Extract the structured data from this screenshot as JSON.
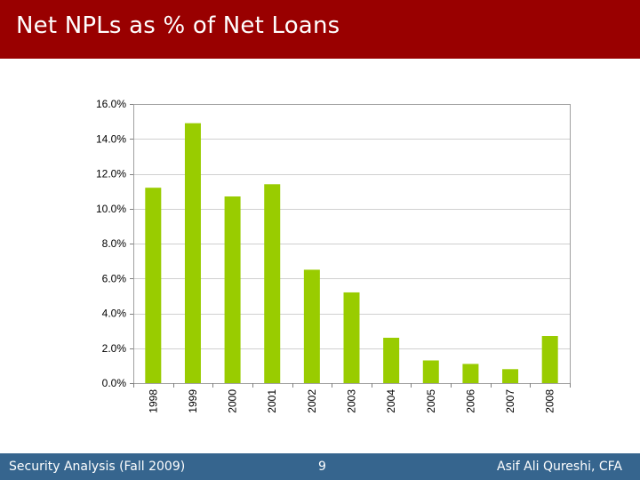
{
  "slide": {
    "title": "Net NPLs as % of Net Loans",
    "footer_left": "Security Analysis (Fall 2009)",
    "page_number": "9",
    "footer_right": "Asif Ali Qureshi, CFA",
    "title_bar_color": "#990000",
    "footer_bar_color": "#36658e"
  },
  "chart_data": {
    "type": "bar",
    "categories": [
      "1998",
      "1999",
      "2000",
      "2001",
      "2002",
      "2003",
      "2004",
      "2005",
      "2006",
      "2007",
      "2008"
    ],
    "values": [
      11.2,
      14.9,
      10.7,
      11.4,
      6.5,
      5.2,
      2.6,
      1.3,
      1.1,
      0.8,
      2.7
    ],
    "ylim": [
      0,
      16
    ],
    "yticks": [
      0,
      2,
      4,
      6,
      8,
      10,
      12,
      14,
      16
    ],
    "ytick_format": "0.0%",
    "bar_color": "#99cc00",
    "grid": true,
    "legend": "none"
  }
}
